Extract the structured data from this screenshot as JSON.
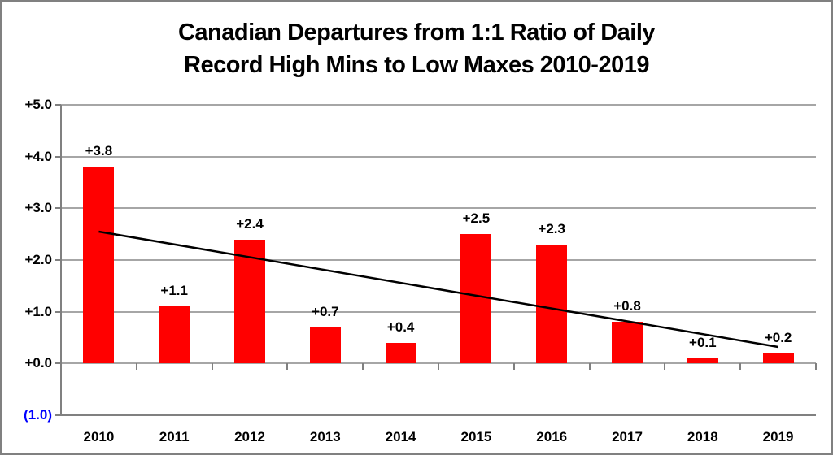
{
  "title": {
    "line1": "Canadian Departures from 1:1 Ratio of Daily",
    "line2": "Record High Mins to Low Maxes 2010-2019"
  },
  "colors": {
    "background": "#FFFFFF",
    "border": "#808080",
    "bar": "#FF0000",
    "trendline": "#000000",
    "gridline": "#A6A6A6",
    "axis": "#808080",
    "text": "#000000",
    "negative_tick_label": "#0000FF"
  },
  "chart_data": {
    "type": "bar",
    "title": "Canadian Departures from 1:1 Ratio of Daily Record High Mins to Low Maxes 2010-2019",
    "categories": [
      "2010",
      "2011",
      "2012",
      "2013",
      "2014",
      "2015",
      "2016",
      "2017",
      "2018",
      "2019"
    ],
    "values": [
      3.8,
      1.1,
      2.4,
      0.7,
      0.4,
      2.5,
      2.3,
      0.8,
      0.1,
      0.2
    ],
    "bar_labels": [
      "+3.8",
      "+1.1",
      "+2.4",
      "+0.7",
      "+0.4",
      "+2.5",
      "+2.3",
      "+0.8",
      "+0.1",
      "+0.2"
    ],
    "xlabel": "",
    "ylabel": "",
    "y_axis": {
      "min": -1,
      "max": 5,
      "tick_labels": [
        "+5.0",
        "+4.0",
        "+3.0",
        "+2.0",
        "+1.0",
        "+0.0",
        "(1.0)"
      ],
      "tick_values": [
        5,
        4,
        3,
        2,
        1,
        0,
        -1
      ]
    },
    "grid": true,
    "legend": false,
    "trendline": {
      "type": "linear",
      "start_value": 2.55,
      "end_value": 0.32
    }
  }
}
